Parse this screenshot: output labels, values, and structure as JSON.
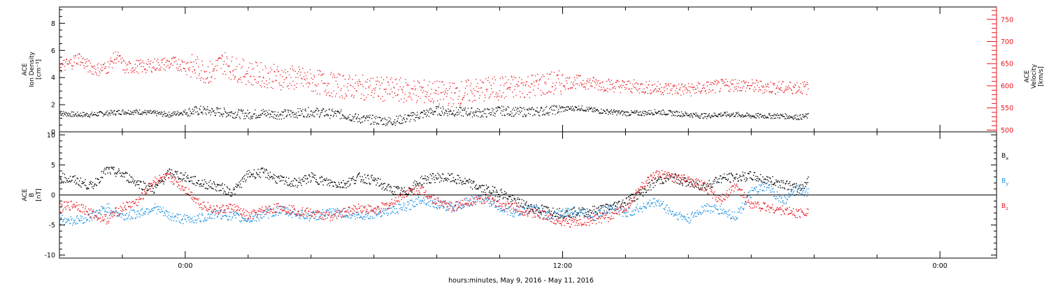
{
  "colors": {
    "black": "#000000",
    "red": "#e8141c",
    "blue": "#1a8fe0",
    "axis": "#000000"
  },
  "footer": {
    "xlabel": "hours:minutes, May  9, 2016 - May 11, 2016"
  },
  "x_ticks": [
    {
      "t": 0,
      "label": "0:00"
    },
    {
      "t": 12,
      "label": "12:00"
    },
    {
      "t": 24,
      "label": "0:00"
    }
  ],
  "x_range_hours": [
    -4,
    25.8
  ],
  "chart_data": [
    {
      "type": "scatter",
      "panel": "plasma",
      "ylabel_left": [
        "ACE",
        "Ion Density",
        "[cm⁻³]"
      ],
      "ylabel_right": [
        "ACE",
        "Velocity",
        "[km/s]"
      ],
      "ylim_left": [
        0,
        9.2
      ],
      "ylim_right": [
        496,
        778
      ],
      "yticks_left": [
        "0",
        "2",
        "4",
        "6",
        "8"
      ],
      "yticks_right": [
        "500",
        "550",
        "600",
        "650",
        "700",
        "750"
      ],
      "series": [
        {
          "axis": "left",
          "color": "black",
          "x": [
            -4.0,
            -3.5,
            -3.0,
            -2.5,
            -2.0,
            -1.5,
            -1.0,
            -0.5,
            0.0,
            0.5,
            1.0,
            1.5,
            2.0,
            2.5,
            3.0,
            3.5,
            4.0,
            4.5,
            5.0,
            5.5,
            6.0,
            6.5,
            7.0,
            7.5,
            8.0,
            8.5,
            9.0,
            9.5,
            10.0,
            10.5,
            11.0,
            11.5,
            12.0,
            12.5,
            13.0,
            13.5,
            14.0,
            14.5,
            15.0,
            15.5,
            16.0,
            16.5,
            17.0,
            17.5,
            18.0,
            18.5,
            19.0,
            19.5,
            19.8
          ],
          "y": [
            1.4,
            1.3,
            1.3,
            1.4,
            1.5,
            1.5,
            1.4,
            1.3,
            1.5,
            1.6,
            1.5,
            1.4,
            1.3,
            1.4,
            1.3,
            1.4,
            1.5,
            1.4,
            1.3,
            1.0,
            0.9,
            0.8,
            1.0,
            1.3,
            1.6,
            1.5,
            1.5,
            1.4,
            1.6,
            1.5,
            1.5,
            1.6,
            1.7,
            1.8,
            1.6,
            1.5,
            1.4,
            1.4,
            1.5,
            1.4,
            1.3,
            1.2,
            1.3,
            1.3,
            1.2,
            1.2,
            1.2,
            1.1,
            1.2
          ]
        },
        {
          "axis": "right",
          "color": "red",
          "x": [
            -4.0,
            -3.7,
            -3.4,
            -3.1,
            -2.8,
            -2.5,
            -2.2,
            -1.9,
            -1.6,
            -1.3,
            -1.0,
            -0.7,
            -0.4,
            0.0,
            0.4,
            0.8,
            1.2,
            1.5,
            2.0,
            2.5,
            3.0,
            3.5,
            4.0,
            4.5,
            5.0,
            5.5,
            6.0,
            6.5,
            7.0,
            7.5,
            8.0,
            8.5,
            9.0,
            9.5,
            10.0,
            10.5,
            11.0,
            11.5,
            12.0,
            12.5,
            13.0,
            13.5,
            14.0,
            14.5,
            15.0,
            15.5,
            16.0,
            16.5,
            17.0,
            17.5,
            18.0,
            18.5,
            19.0,
            19.5,
            19.8
          ],
          "y": [
            645,
            650,
            665,
            645,
            638,
            642,
            668,
            640,
            645,
            644,
            648,
            650,
            652,
            648,
            640,
            630,
            655,
            640,
            630,
            625,
            620,
            618,
            612,
            605,
            600,
            598,
            595,
            592,
            590,
            588,
            585,
            582,
            588,
            592,
            596,
            598,
            602,
            605,
            608,
            610,
            606,
            602,
            600,
            598,
            596,
            594,
            592,
            596,
            600,
            604,
            600,
            598,
            596,
            598,
            595
          ]
        }
      ]
    },
    {
      "type": "scatter",
      "panel": "magnetic-field",
      "ylabel_left": [
        "ACE",
        "B",
        "[nT]"
      ],
      "ylim": [
        -10.5,
        10.5
      ],
      "yticks": [
        "-10",
        "-5",
        "0",
        "5",
        "10"
      ],
      "zero_line": true,
      "legend": [
        {
          "label": "B",
          "sub": "x",
          "color": "black"
        },
        {
          "label": "B",
          "sub": "y",
          "color": "blue"
        },
        {
          "label": "B",
          "sub": "z",
          "color": "red"
        }
      ],
      "series": [
        {
          "name": "Bx",
          "color": "black",
          "x": [
            -4.0,
            -3.5,
            -3.0,
            -2.5,
            -2.0,
            -1.5,
            -1.0,
            -0.5,
            0.0,
            0.5,
            1.0,
            1.5,
            2.0,
            2.5,
            3.0,
            3.5,
            4.0,
            4.5,
            5.0,
            5.5,
            6.0,
            6.5,
            7.0,
            7.5,
            8.0,
            8.5,
            9.0,
            9.5,
            10.0,
            10.5,
            11.0,
            11.5,
            12.0,
            12.5,
            13.0,
            13.5,
            14.0,
            14.5,
            15.0,
            15.5,
            16.0,
            16.5,
            17.0,
            17.5,
            18.0,
            18.5,
            19.0,
            19.5,
            19.8
          ],
          "y": [
            3.0,
            2.5,
            1.5,
            4.2,
            3.5,
            2.0,
            1.0,
            3.8,
            3.0,
            2.0,
            1.5,
            0.5,
            3.5,
            3.8,
            2.5,
            2.0,
            3.0,
            2.2,
            1.8,
            3.0,
            2.5,
            1.0,
            0.5,
            2.5,
            3.0,
            2.8,
            2.0,
            1.0,
            0.5,
            -1.0,
            -2.0,
            -2.5,
            -3.0,
            -2.8,
            -2.5,
            -2.0,
            -1.0,
            0.5,
            2.5,
            3.0,
            2.0,
            1.5,
            2.8,
            3.0,
            3.2,
            2.5,
            2.0,
            1.0,
            2.5
          ]
        },
        {
          "name": "By",
          "color": "blue",
          "x": [
            -4.0,
            -3.5,
            -3.0,
            -2.5,
            -2.0,
            -1.5,
            -1.0,
            -0.5,
            0.0,
            0.5,
            1.0,
            1.5,
            2.0,
            2.5,
            3.0,
            3.5,
            4.0,
            4.5,
            5.0,
            5.5,
            6.0,
            6.5,
            7.0,
            7.5,
            8.0,
            8.5,
            9.0,
            9.5,
            10.0,
            10.5,
            11.0,
            11.5,
            12.0,
            12.5,
            13.0,
            13.5,
            14.0,
            14.5,
            15.0,
            15.5,
            16.0,
            16.5,
            17.0,
            17.5,
            18.0,
            18.5,
            19.0,
            19.5,
            19.8
          ],
          "y": [
            -4.0,
            -4.2,
            -3.5,
            -2.0,
            -3.5,
            -3.0,
            -2.0,
            -3.5,
            -4.0,
            -3.8,
            -3.0,
            -3.5,
            -4.0,
            -3.2,
            -2.5,
            -3.0,
            -3.5,
            -3.0,
            -2.8,
            -3.5,
            -3.0,
            -2.5,
            -2.0,
            -0.5,
            -1.5,
            -2.0,
            -1.0,
            -0.5,
            -2.0,
            -3.0,
            -2.0,
            -3.5,
            -3.0,
            -2.5,
            -3.5,
            -2.0,
            -3.0,
            -2.0,
            -1.0,
            -3.0,
            -4.0,
            -2.0,
            -2.5,
            -3.5,
            0.5,
            1.5,
            -1.0,
            1.0,
            0.5
          ]
        },
        {
          "name": "Bz",
          "color": "red",
          "x": [
            -4.0,
            -3.5,
            -3.0,
            -2.5,
            -2.0,
            -1.5,
            -1.0,
            -0.5,
            0.0,
            0.5,
            1.0,
            1.5,
            2.0,
            2.5,
            3.0,
            3.5,
            4.0,
            4.5,
            5.0,
            5.5,
            6.0,
            6.5,
            7.0,
            7.5,
            8.0,
            8.5,
            9.0,
            9.5,
            10.0,
            10.5,
            11.0,
            11.5,
            12.0,
            12.5,
            13.0,
            13.5,
            14.0,
            14.5,
            15.0,
            15.5,
            16.0,
            16.5,
            17.0,
            17.5,
            18.0,
            18.5,
            19.0,
            19.5,
            19.8
          ],
          "y": [
            -2.0,
            -1.5,
            -3.0,
            -4.0,
            -2.0,
            -1.0,
            2.5,
            3.0,
            1.0,
            -1.5,
            -2.5,
            -2.0,
            -3.5,
            -2.5,
            -2.0,
            -2.5,
            -3.0,
            -3.5,
            -3.0,
            -2.0,
            -2.5,
            -1.5,
            0.5,
            1.0,
            -1.0,
            -2.0,
            -1.0,
            -0.5,
            -1.5,
            -2.0,
            -3.0,
            -3.5,
            -4.5,
            -4.5,
            -4.0,
            -3.5,
            -2.0,
            1.5,
            3.5,
            3.0,
            2.5,
            1.5,
            -1.0,
            1.5,
            -1.5,
            -2.0,
            -2.5,
            -3.0,
            -2.5
          ]
        }
      ]
    }
  ]
}
